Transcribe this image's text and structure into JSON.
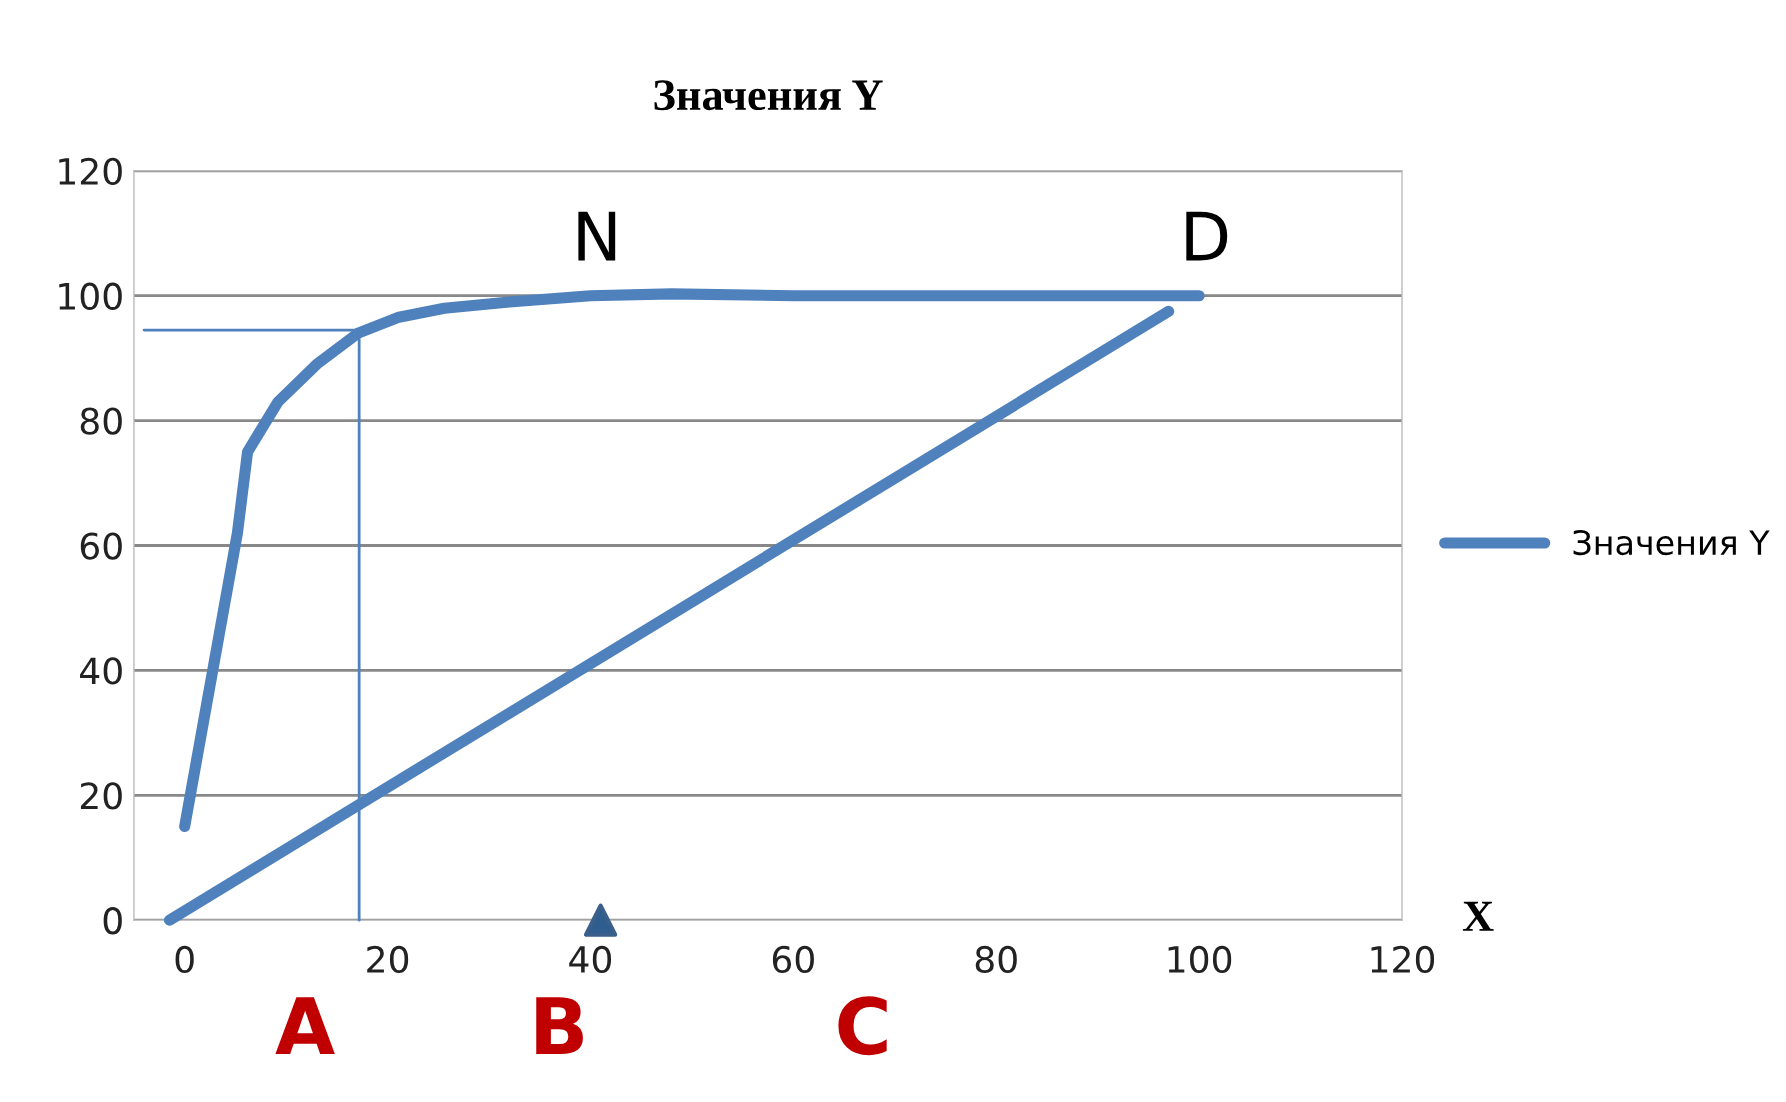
{
  "chart_data": {
    "type": "line",
    "title": "Значения Y",
    "xlabel": "X",
    "series": [
      {
        "name": "Значения Y",
        "color": "#4f81bd",
        "x": [
          0,
          5.2,
          6.2,
          9.2,
          13,
          17.1,
          21,
          25.6,
          32,
          40,
          48,
          60,
          80,
          100
        ],
        "values": [
          15,
          62,
          75,
          83,
          89,
          94,
          96.5,
          98,
          99,
          100,
          100.3,
          100,
          100,
          100
        ]
      },
      {
        "color": "#4f81bd",
        "x": [
          -1.5,
          97
        ],
        "values": [
          0,
          97.5
        ]
      },
      {
        "color": "#4f81bd",
        "x": [
          17.2,
          17.2
        ],
        "values": [
          0,
          94.5
        ]
      },
      {
        "color": "#4f81bd",
        "x": [
          -4,
          17.2
        ],
        "values": [
          94.5,
          94.5
        ]
      },
      {
        "type": "scatter",
        "color": "#2e5d8e",
        "marker": "triangle",
        "x": [
          41
        ],
        "values": [
          0
        ]
      }
    ],
    "annotations": [
      "N",
      "D",
      "A",
      "B",
      "C"
    ],
    "xlim": [
      -5,
      120
    ],
    "ylim": [
      0,
      120
    ],
    "xticks": [
      0,
      20,
      40,
      60,
      80,
      100,
      120
    ],
    "yticks": [
      0,
      20,
      40,
      60,
      80,
      100,
      120
    ],
    "grid": "y",
    "legend": "right"
  }
}
